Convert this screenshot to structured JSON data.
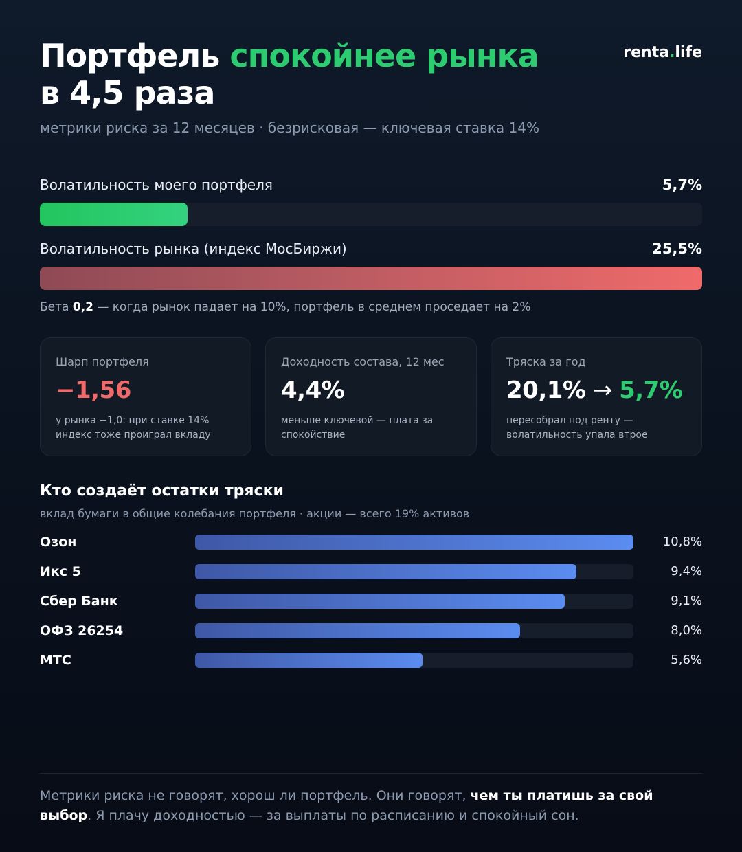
{
  "header": {
    "title_part1": "Портфель ",
    "title_part2": "спокойнее рынка",
    "title_part3": "в 4,5 раза",
    "brand_name": "renta",
    "brand_dot": ".",
    "brand_tld": "life",
    "subtitle": "метрики риска за 12 месяцев · безрисковая — ключевая ставка 14%"
  },
  "volatility": {
    "portfolio_label": "Волатильность моего портфеля",
    "portfolio_value": "5,7%",
    "market_label": "Волатильность рынка (индекс МосБиржи)",
    "market_value": "25,5%",
    "beta_prefix": "Бета ",
    "beta_value": "0,2",
    "beta_suffix": " — когда рынок падает на 10%, портфель в среднем проседает на 2%"
  },
  "cards": {
    "sharpe": {
      "label": "Шарп портфеля",
      "value": "−1,56",
      "note": "у рынка −1,0: при ставке 14% индекс тоже проиграл вкладу"
    },
    "yield": {
      "label": "Доходность состава, 12 мес",
      "value": "4,4%",
      "note": "меньше ключевой — плата за спокойствие"
    },
    "shake": {
      "label": "Тряска за год",
      "value_before": "20,1%",
      "arrow": " → ",
      "value_after": "5,7%",
      "note": "пересобрал под ренту — волатильность упала втрое"
    }
  },
  "contributors": {
    "title": "Кто создаёт остатки тряски",
    "subtitle": "вклад бумаги в общие колебания портфеля · акции — всего 19% активов"
  },
  "footer": {
    "text_before": "Метрики риска не говорят, хорош ли портфель. Они говорят, ",
    "text_bold": "чем ты платишь за свой выбор",
    "text_after": ". Я плачу доходностью — за выплаты по расписанию и спокойный сон."
  },
  "colors": {
    "accent_green": "#2ecc71",
    "accent_red": "#f06a6a",
    "bar_blue": "#5b8cf0",
    "background": "#0b1320"
  },
  "chart_data": [
    {
      "type": "bar",
      "orientation": "horizontal",
      "categories": [
        "Волатильность моего портфеля",
        "Волатильность рынка (индекс МосБиржи)"
      ],
      "values": [
        5.7,
        25.5
      ],
      "value_labels": [
        "5,7%",
        "25,5%"
      ],
      "xlim": [
        0,
        25.5
      ],
      "grid": false
    },
    {
      "type": "bar",
      "orientation": "horizontal",
      "title": "Кто создаёт остатки тряски",
      "categories": [
        "Озон",
        "Икс 5",
        "Сбер Банк",
        "ОФЗ 26254",
        "МТС"
      ],
      "values": [
        10.8,
        9.4,
        9.1,
        8.0,
        5.6
      ],
      "value_labels": [
        "10,8%",
        "9,4%",
        "9,1%",
        "8,0%",
        "5,6%"
      ],
      "xlim": [
        0,
        10.8
      ],
      "grid": false
    }
  ]
}
